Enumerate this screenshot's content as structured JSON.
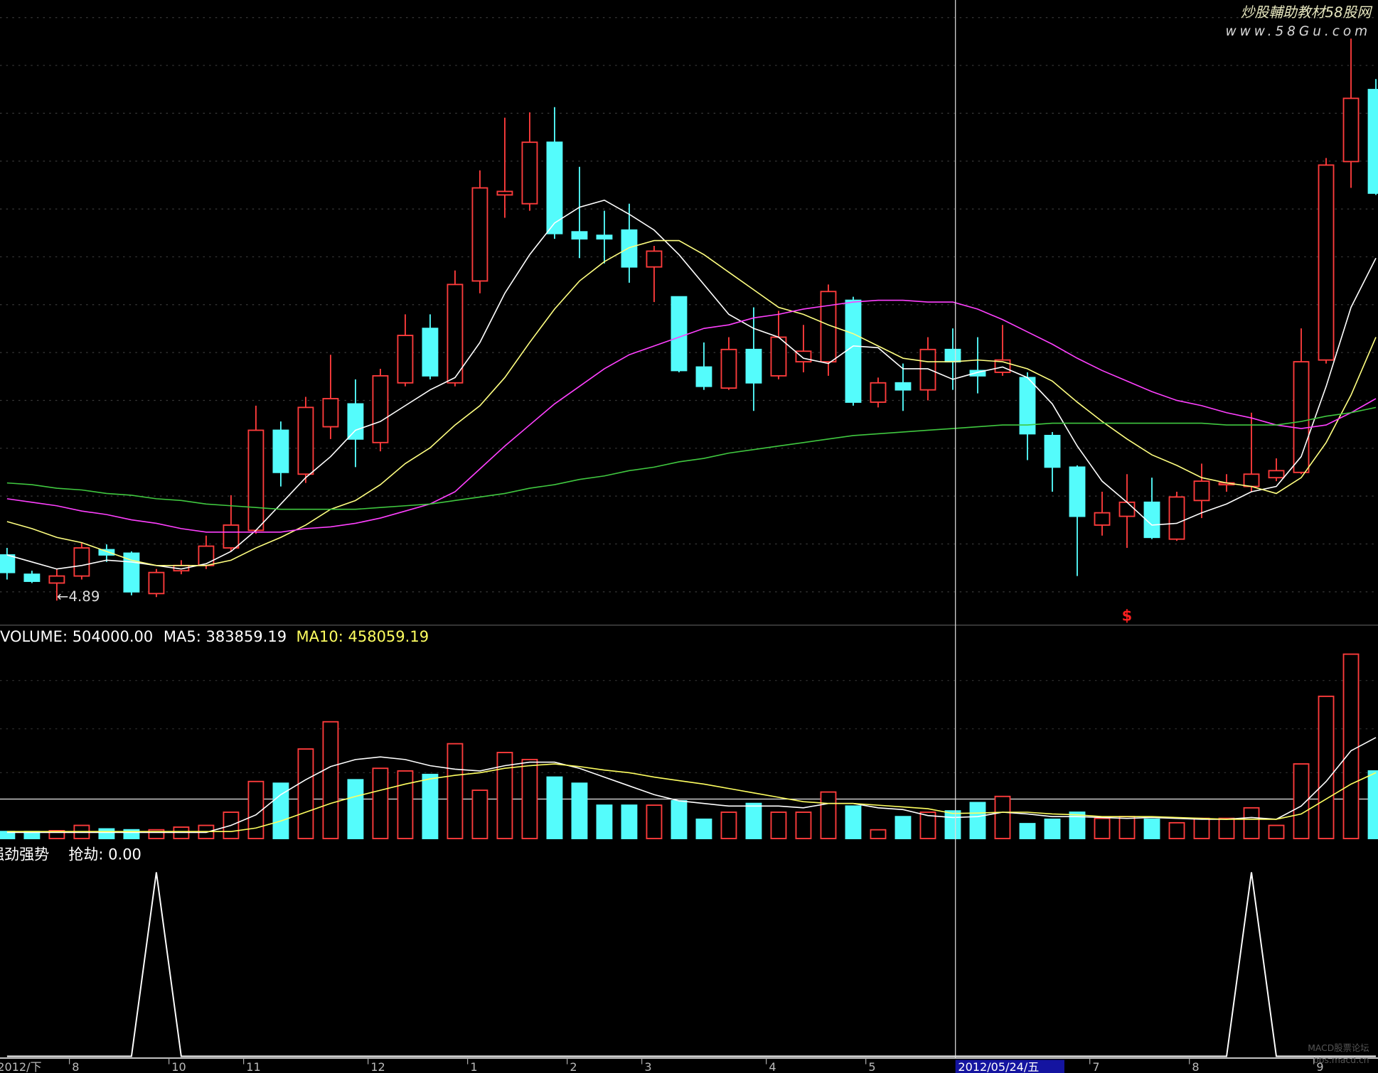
{
  "chart_data": [
    {
      "type": "candlestick",
      "ylim": [
        4.75,
        8.31
      ],
      "up_color": "#ff3c3c",
      "down_color": "#54fcfc",
      "open": [
        5.15,
        5.04,
        4.99,
        5.03,
        5.18,
        5.16,
        4.93,
        5.06,
        5.09,
        5.19,
        5.29,
        5.86,
        5.61,
        5.88,
        6.01,
        5.79,
        6.13,
        6.44,
        6.13,
        6.71,
        7.2,
        7.15,
        7.5,
        6.99,
        6.97,
        7.0,
        6.79,
        6.62,
        6.22,
        6.1,
        6.32,
        6.17,
        6.25,
        6.25,
        6.6,
        6.02,
        6.13,
        6.09,
        6.32,
        6.2,
        6.19,
        6.16,
        5.83,
        5.65,
        5.32,
        5.37,
        5.45,
        5.24,
        5.46,
        5.55,
        5.54,
        5.59,
        5.62,
        6.26,
        7.39,
        7.8
      ],
      "high": [
        5.19,
        5.06,
        5.07,
        5.22,
        5.21,
        5.17,
        5.07,
        5.12,
        5.26,
        5.49,
        6.0,
        5.91,
        6.05,
        6.29,
        6.15,
        6.21,
        6.52,
        6.52,
        6.77,
        7.34,
        7.64,
        7.67,
        7.7,
        7.36,
        7.11,
        7.15,
        6.91,
        6.62,
        6.36,
        6.39,
        6.56,
        6.54,
        6.46,
        6.69,
        6.62,
        6.16,
        6.24,
        6.39,
        6.44,
        6.39,
        6.46,
        6.19,
        5.85,
        5.66,
        5.51,
        5.61,
        5.59,
        5.51,
        5.67,
        5.61,
        5.96,
        5.7,
        6.44,
        7.41,
        8.09,
        7.86
      ],
      "low": [
        5.01,
        4.99,
        4.89,
        5.01,
        5.11,
        4.92,
        4.91,
        5.04,
        5.07,
        5.17,
        5.27,
        5.54,
        5.56,
        5.81,
        5.65,
        5.74,
        6.11,
        6.15,
        6.11,
        6.64,
        7.07,
        7.11,
        6.95,
        6.84,
        6.81,
        6.7,
        6.59,
        6.19,
        6.09,
        6.09,
        5.97,
        6.15,
        6.19,
        6.17,
        6.0,
        5.99,
        5.97,
        6.03,
        6.09,
        6.07,
        6.17,
        5.69,
        5.51,
        5.03,
        5.26,
        5.19,
        5.24,
        5.23,
        5.36,
        5.51,
        5.51,
        5.57,
        5.61,
        6.24,
        7.24,
        7.2
      ],
      "close": [
        5.05,
        5.0,
        5.03,
        5.19,
        5.15,
        4.94,
        5.05,
        5.09,
        5.2,
        5.32,
        5.86,
        5.62,
        5.99,
        6.04,
        5.81,
        6.17,
        6.4,
        6.17,
        6.69,
        7.24,
        7.22,
        7.5,
        6.98,
        6.95,
        6.95,
        6.79,
        6.88,
        6.2,
        6.11,
        6.32,
        6.13,
        6.39,
        6.31,
        6.65,
        6.02,
        6.13,
        6.09,
        6.32,
        6.25,
        6.17,
        6.26,
        5.84,
        5.65,
        5.37,
        5.39,
        5.45,
        5.25,
        5.48,
        5.57,
        5.56,
        5.61,
        5.63,
        6.25,
        7.37,
        7.75,
        7.21
      ],
      "series": [
        {
          "color": "#ffffff",
          "values": [
            5.15,
            5.11,
            5.07,
            5.09,
            5.12,
            5.11,
            5.09,
            5.07,
            5.1,
            5.17,
            5.29,
            5.44,
            5.59,
            5.71,
            5.86,
            5.91,
            6.0,
            6.09,
            6.16,
            6.36,
            6.64,
            6.86,
            7.04,
            7.13,
            7.17,
            7.09,
            7.0,
            6.86,
            6.69,
            6.52,
            6.44,
            6.39,
            6.27,
            6.24,
            6.34,
            6.33,
            6.21,
            6.21,
            6.15,
            6.19,
            6.22,
            6.16,
            6.01,
            5.77,
            5.57,
            5.45,
            5.32,
            5.33,
            5.39,
            5.44,
            5.51,
            5.54,
            5.71,
            6.11,
            6.56,
            6.84
          ]
        },
        {
          "color": "#ffff80",
          "values": [
            5.34,
            5.3,
            5.25,
            5.22,
            5.17,
            5.12,
            5.09,
            5.09,
            5.09,
            5.12,
            5.19,
            5.25,
            5.32,
            5.41,
            5.46,
            5.55,
            5.67,
            5.76,
            5.89,
            6.0,
            6.16,
            6.36,
            6.55,
            6.71,
            6.82,
            6.9,
            6.94,
            6.94,
            6.86,
            6.76,
            6.66,
            6.56,
            6.52,
            6.46,
            6.41,
            6.34,
            6.27,
            6.25,
            6.25,
            6.26,
            6.25,
            6.21,
            6.14,
            6.02,
            5.91,
            5.81,
            5.72,
            5.66,
            5.59,
            5.56,
            5.54,
            5.5,
            5.59,
            5.79,
            6.06,
            6.39
          ]
        },
        {
          "color": "#ff40ff",
          "values": [
            5.47,
            5.45,
            5.43,
            5.4,
            5.38,
            5.35,
            5.33,
            5.3,
            5.28,
            5.28,
            5.28,
            5.28,
            5.3,
            5.31,
            5.33,
            5.36,
            5.4,
            5.44,
            5.51,
            5.64,
            5.77,
            5.89,
            6.01,
            6.11,
            6.21,
            6.29,
            6.34,
            6.39,
            6.44,
            6.46,
            6.5,
            6.52,
            6.55,
            6.57,
            6.59,
            6.6,
            6.6,
            6.59,
            6.59,
            6.55,
            6.49,
            6.42,
            6.35,
            6.27,
            6.2,
            6.14,
            6.08,
            6.03,
            6.0,
            5.96,
            5.93,
            5.89,
            5.87,
            5.89,
            5.96,
            6.04
          ]
        },
        {
          "color": "#40c840",
          "values": [
            5.56,
            5.55,
            5.53,
            5.52,
            5.5,
            5.49,
            5.47,
            5.46,
            5.44,
            5.43,
            5.42,
            5.41,
            5.41,
            5.41,
            5.41,
            5.42,
            5.43,
            5.44,
            5.46,
            5.48,
            5.5,
            5.53,
            5.55,
            5.58,
            5.6,
            5.63,
            5.65,
            5.68,
            5.7,
            5.73,
            5.75,
            5.77,
            5.79,
            5.81,
            5.83,
            5.84,
            5.85,
            5.86,
            5.87,
            5.88,
            5.89,
            5.89,
            5.9,
            5.9,
            5.9,
            5.9,
            5.9,
            5.9,
            5.9,
            5.89,
            5.89,
            5.89,
            5.91,
            5.94,
            5.96,
            5.99
          ]
        }
      ],
      "annotations": [
        {
          "index": 2,
          "label": "←4.89",
          "color": "#dddddd"
        }
      ],
      "markers": [
        {
          "index": 45,
          "label": "$",
          "color": "#ff2020"
        }
      ]
    },
    {
      "type": "bar",
      "ylim": [
        0,
        3440000
      ],
      "values": [
        128000,
        128000,
        144000,
        240000,
        176000,
        160000,
        160000,
        208000,
        240000,
        480000,
        1040000,
        1008000,
        1632000,
        2128000,
        1072000,
        1280000,
        1232000,
        1168000,
        1728000,
        880000,
        1568000,
        1440000,
        1120000,
        1008000,
        608000,
        608000,
        608000,
        688000,
        352000,
        480000,
        640000,
        480000,
        480000,
        848000,
        592000,
        160000,
        400000,
        480000,
        504000,
        656000,
        768000,
        272000,
        352000,
        480000,
        368000,
        400000,
        352000,
        288000,
        368000,
        368000,
        560000,
        240000,
        1360000,
        2592000,
        3360000,
        1232000
      ],
      "label": "VOLUME: 504000.00",
      "label_color": "#ffffff",
      "series": [
        {
          "color": "#ffffff",
          "label": "MA5: 383859.19",
          "values": [
            112000,
            112000,
            112000,
            112000,
            112000,
            112000,
            112000,
            112000,
            112000,
            240000,
            432000,
            800000,
            1072000,
            1312000,
            1440000,
            1488000,
            1440000,
            1328000,
            1264000,
            1232000,
            1328000,
            1392000,
            1392000,
            1280000,
            1120000,
            960000,
            800000,
            688000,
            640000,
            592000,
            592000,
            592000,
            560000,
            640000,
            640000,
            560000,
            528000,
            420000,
            383859.19,
            400000,
            480000,
            448000,
            400000,
            400000,
            384000,
            368000,
            384000,
            368000,
            352000,
            352000,
            384000,
            352000,
            592000,
            1040000,
            1600000,
            1840000
          ]
        },
        {
          "color": "#ffff60",
          "label": "MA10: 458059.19",
          "values": [
            128000,
            128000,
            128000,
            128000,
            128000,
            128000,
            128000,
            128000,
            128000,
            128000,
            192000,
            320000,
            480000,
            640000,
            768000,
            880000,
            992000,
            1088000,
            1152000,
            1200000,
            1280000,
            1328000,
            1360000,
            1312000,
            1248000,
            1200000,
            1120000,
            1056000,
            992000,
            912000,
            832000,
            752000,
            672000,
            640000,
            640000,
            608000,
            576000,
            544000,
            458059.19,
            464000,
            480000,
            480000,
            448000,
            432000,
            400000,
            400000,
            400000,
            384000,
            368000,
            352000,
            352000,
            352000,
            448000,
            720000,
            992000,
            1200000
          ]
        }
      ]
    },
    {
      "type": "line",
      "title": "强劲强势",
      "ylim": [
        0,
        1.04
      ],
      "series": [
        {
          "color": "#ffffff",
          "label": "抢劫: 0.00",
          "values": [
            0,
            0,
            0,
            0,
            0,
            0,
            1,
            0,
            0,
            0,
            0,
            0,
            0,
            0,
            0,
            0,
            0,
            0,
            0,
            0,
            0,
            0,
            0,
            0,
            0,
            0,
            0,
            0,
            0,
            0,
            0,
            0,
            0,
            0,
            0,
            0,
            0,
            0,
            0,
            0,
            0,
            0,
            0,
            0,
            0,
            0,
            0,
            0,
            0,
            0,
            1,
            0,
            0,
            0,
            0,
            0
          ]
        }
      ],
      "categories": [
        "2012/下",
        null,
        null,
        "8",
        null,
        null,
        null,
        "10",
        null,
        null,
        "11",
        null,
        null,
        null,
        null,
        "12",
        null,
        null,
        null,
        "1",
        null,
        null,
        null,
        "2",
        null,
        null,
        "3",
        null,
        null,
        null,
        null,
        "4",
        null,
        null,
        null,
        "5",
        null,
        null,
        null,
        null,
        null,
        null,
        null,
        null,
        "7",
        null,
        null,
        null,
        "8",
        null,
        null,
        null,
        null,
        "9",
        null,
        null
      ],
      "crosshair": {
        "index": 38,
        "label": "2012/05/24/五"
      }
    }
  ],
  "watermarks": [
    "炒股輔助教材58股网",
    "www.58Gu.com",
    "MACD股票论坛",
    "bbs.macd.cn"
  ]
}
